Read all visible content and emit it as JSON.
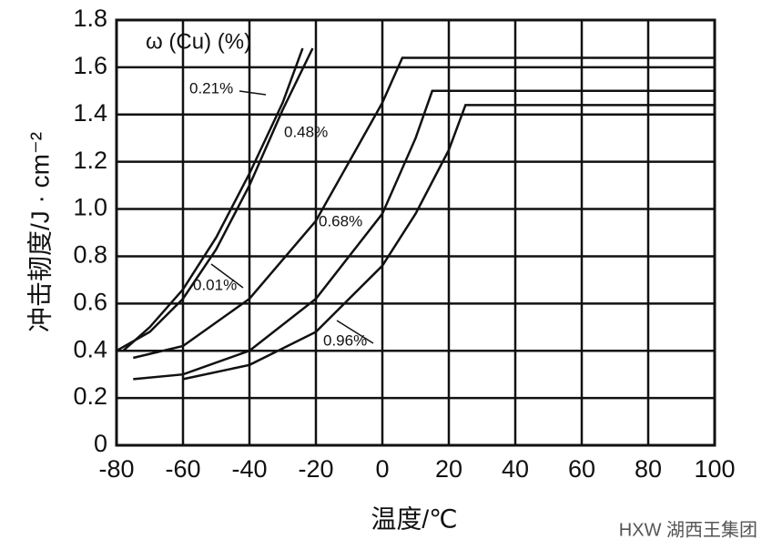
{
  "chart_data": {
    "type": "line",
    "legend_title": "ω (Cu) (%)",
    "x_label": "温度/℃",
    "y_label": "冲击韧度/J · cm⁻²",
    "watermark": "HXW 湖西王集团",
    "xlim": [
      -80,
      100
    ],
    "xticks": [
      -80,
      -60,
      -40,
      -20,
      0,
      20,
      40,
      60,
      80,
      100
    ],
    "ylim": [
      0,
      1.8
    ],
    "yticks": [
      0,
      0.2,
      0.4,
      0.6,
      0.8,
      {
        "value": 1,
        "label": "1.0"
      },
      1.2,
      1.4,
      1.6,
      1.8
    ],
    "grid": true,
    "series": [
      {
        "name": "0.21%",
        "color": "#111111",
        "x": [
          -78,
          -70,
          -60,
          -50,
          -40,
          -30,
          -24
        ],
        "values": [
          0.4,
          0.5,
          0.66,
          0.88,
          1.15,
          1.45,
          1.68
        ]
      },
      {
        "name": "0.48%",
        "color": "#111111",
        "x": [
          -75,
          -60,
          -40,
          -20,
          -10,
          0,
          6,
          100
        ],
        "values": [
          0.37,
          0.42,
          0.62,
          0.95,
          1.2,
          1.45,
          1.64,
          1.64
        ]
      },
      {
        "name": "0.68%",
        "color": "#111111",
        "x": [
          -75,
          -60,
          -40,
          -20,
          0,
          10,
          15,
          100
        ],
        "values": [
          0.28,
          0.3,
          0.4,
          0.62,
          0.98,
          1.3,
          1.5,
          1.5
        ]
      },
      {
        "name": "0.01%",
        "color": "#111111",
        "x": [
          -80,
          -70,
          -60,
          -50,
          -40,
          -30,
          -21
        ],
        "values": [
          0.4,
          0.48,
          0.62,
          0.83,
          1.1,
          1.42,
          1.68
        ]
      },
      {
        "name": "0.96%",
        "color": "#111111",
        "x": [
          -60,
          -40,
          -20,
          0,
          10,
          20,
          25,
          100
        ],
        "values": [
          0.28,
          0.34,
          0.48,
          0.76,
          0.98,
          1.25,
          1.44,
          1.44
        ]
      }
    ]
  }
}
